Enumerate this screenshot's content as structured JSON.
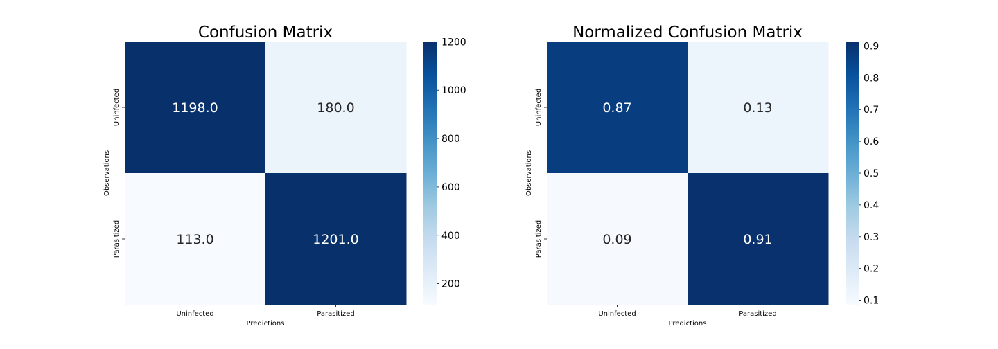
{
  "chart_data": [
    {
      "type": "heatmap",
      "title": "Confusion Matrix",
      "xlabel": "Predictions",
      "ylabel": "Observations",
      "x_categories": [
        "Uninfected",
        "Parasitized"
      ],
      "y_categories": [
        "Uninfected",
        "Parasitized"
      ],
      "values": [
        [
          1198.0,
          180.0
        ],
        [
          113.0,
          1201.0
        ]
      ],
      "cell_labels": [
        [
          "1198.0",
          "180.0"
        ],
        [
          "113.0",
          "1201.0"
        ]
      ],
      "colorbar": {
        "min": 113.0,
        "max": 1201.0,
        "ticks": [
          200,
          400,
          600,
          800,
          1000,
          1200
        ],
        "tick_labels": [
          "200",
          "400",
          "600",
          "800",
          "1000",
          "1200"
        ]
      },
      "colormap": "Blues"
    },
    {
      "type": "heatmap",
      "title": "Normalized Confusion Matrix",
      "xlabel": "Predictions",
      "ylabel": "Observations",
      "x_categories": [
        "Uninfected",
        "Parasitized"
      ],
      "y_categories": [
        "Uninfected",
        "Parasitized"
      ],
      "values": [
        [
          0.87,
          0.13
        ],
        [
          0.09,
          0.91
        ]
      ],
      "cell_labels": [
        [
          "0.87",
          "0.13"
        ],
        [
          "0.09",
          "0.91"
        ]
      ],
      "colorbar": {
        "min": 0.086,
        "max": 0.914,
        "ticks": [
          0.1,
          0.2,
          0.3,
          0.4,
          0.5,
          0.6,
          0.7,
          0.8,
          0.9
        ],
        "tick_labels": [
          "0.1",
          "0.2",
          "0.3",
          "0.4",
          "0.5",
          "0.6",
          "0.7",
          "0.8",
          "0.9"
        ]
      },
      "colormap": "Blues"
    }
  ]
}
